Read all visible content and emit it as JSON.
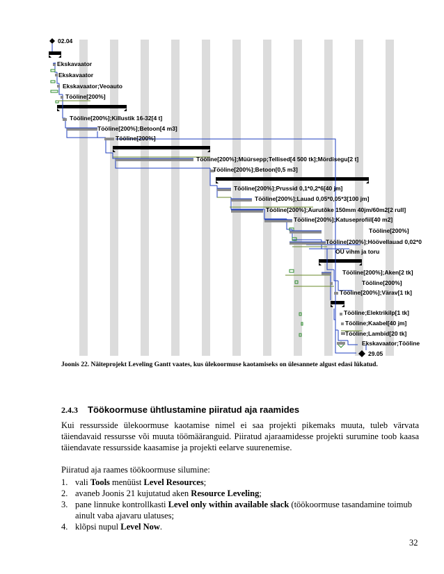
{
  "gantt": {
    "start_label": "02.04",
    "end_label": "29.05",
    "tasks": [
      {
        "label": "Ekskavaator"
      },
      {
        "label": "Ekskavaator"
      },
      {
        "label": "Ekskavaator;Veoauto"
      },
      {
        "label": "Tööline[200%]"
      },
      {
        "label": "Tööline[200%];Killustik 16-32[4 t]"
      },
      {
        "label": "Tööline[200%];Betoon[4 m3]"
      },
      {
        "label": "Tööline[200%]"
      },
      {
        "label": "Tööline[200%];Müürsepp;Tellised[4 500 tk];Mördisegu[2 t]"
      },
      {
        "label": "Tööline[200%];Betoon[0,5 m3]"
      },
      {
        "label": "Tööline[200%];Prussid 0,1*0,2*6[40 jm]"
      },
      {
        "label": "Tööline[200%];Lauad 0,05*0,05*3[100 jm]"
      },
      {
        "label": "Tööline[200%];Aurutõke 150mm 40jm/60m2[2 rull]"
      },
      {
        "label": "Tööline[200%];Katuseprofiil[40 m2]"
      },
      {
        "label": "Tööline[200%]"
      },
      {
        "label": "Tööline[200%];Höövellauad 0,02*0"
      },
      {
        "label": "OÜ vihm ja toru"
      },
      {
        "label": "Tööline[200%];Aken[2 tk]"
      },
      {
        "label": "Tööline[200%]"
      },
      {
        "label": "Tööline[200%];Värav[1 tk]"
      },
      {
        "label": "Tööline;Elektrikilp[1 tk]"
      },
      {
        "label": "Tööline;Kaabel[40 jm]"
      },
      {
        "label": "Tööline;Lambid[20 tk]"
      },
      {
        "label": "Ekskavaator;Tööline"
      }
    ]
  },
  "caption": "Joonis 22. Näiteprojekt Leveling Gantt vaates, kus ülekoormuse kaotamiseks on ülesannete algust edasi lükatud.",
  "section": {
    "number": "2.4.3",
    "title": "Töökoormuse ühtlustamine piiratud aja raamides"
  },
  "paragraph1": "Kui ressursside ülekoormuse kaotamise nimel ei saa projekti pikemaks muuta, tuleb värvata täiendavaid ressursse või muuta töömääranguid. Piiratud ajaraamidesse projekti surumine toob kaasa täiendavate ressursside kaasamise ja projekti eelarve suurenemise.",
  "paragraph2": "Piiratud aja raames töökoormuse silumine:",
  "steps": [
    {
      "num": "1.",
      "pre": "vali ",
      "b1": "Tools",
      "mid": " menüüst ",
      "b2": "Level Resources",
      "post": ";"
    },
    {
      "num": "2.",
      "pre": "avaneb Joonis 21 kujutatud aken ",
      "b1": "Resource Leveling",
      "mid": ";",
      "b2": "",
      "post": ""
    },
    {
      "num": "3.",
      "pre": "pane linnuke kontrollkasti ",
      "b1": "Level only within available slack",
      "mid": " (töökoormuse tasandamine toimub ainult vaba ajavaru ulatuses;",
      "b2": "",
      "post": ""
    },
    {
      "num": "4.",
      "pre": "klõpsi nupul ",
      "b1": "Level Now",
      "mid": ".",
      "b2": "",
      "post": ""
    }
  ],
  "page_number": "32"
}
